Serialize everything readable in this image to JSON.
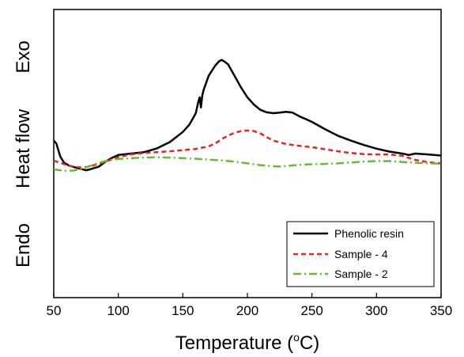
{
  "chart_data": {
    "type": "line",
    "xlabel": "Temperature",
    "xlabel_unit_prefix": "(",
    "xlabel_unit_super": "o",
    "xlabel_unit_suffix": "C)",
    "ylabel_parts": [
      "Endo",
      "Heat flow",
      "Exo"
    ],
    "xlim": [
      50,
      350
    ],
    "xticks": [
      50,
      100,
      150,
      200,
      250,
      300,
      350
    ],
    "y_ticks_shown": false,
    "ylim": [
      0,
      1
    ],
    "grid": false,
    "legend_position": "bottom-right",
    "series": [
      {
        "name": "Phenolic resin",
        "color": "#000000",
        "dash": "solid",
        "x": [
          50,
          52,
          55,
          58,
          62,
          68,
          75,
          78,
          80,
          85,
          90,
          95,
          100,
          110,
          120,
          130,
          140,
          150,
          155,
          160,
          162,
          163,
          164,
          165,
          166,
          170,
          175,
          178,
          180,
          182,
          185,
          190,
          195,
          200,
          205,
          210,
          215,
          220,
          225,
          230,
          235,
          240,
          250,
          260,
          270,
          280,
          290,
          300,
          310,
          320,
          325,
          330,
          340,
          350
        ],
        "y": [
          0.545,
          0.535,
          0.49,
          0.468,
          0.458,
          0.45,
          0.442,
          0.445,
          0.448,
          0.455,
          0.472,
          0.485,
          0.495,
          0.5,
          0.505,
          0.518,
          0.54,
          0.575,
          0.6,
          0.64,
          0.68,
          0.695,
          0.66,
          0.7,
          0.72,
          0.77,
          0.805,
          0.82,
          0.825,
          0.82,
          0.81,
          0.77,
          0.73,
          0.695,
          0.67,
          0.652,
          0.643,
          0.64,
          0.642,
          0.645,
          0.642,
          0.63,
          0.61,
          0.585,
          0.562,
          0.545,
          0.53,
          0.517,
          0.507,
          0.5,
          0.495,
          0.5,
          0.497,
          0.493
        ]
      },
      {
        "name": "Sample - 4",
        "color": "#e32626",
        "dash": "dashed",
        "x": [
          50,
          55,
          60,
          65,
          70,
          75,
          80,
          85,
          90,
          95,
          100,
          110,
          120,
          130,
          140,
          150,
          160,
          170,
          175,
          180,
          185,
          190,
          195,
          200,
          205,
          210,
          215,
          220,
          230,
          240,
          250,
          260,
          270,
          280,
          290,
          300,
          310,
          320,
          330,
          340,
          350
        ],
        "y": [
          0.475,
          0.468,
          0.46,
          0.455,
          0.452,
          0.453,
          0.458,
          0.465,
          0.472,
          0.48,
          0.488,
          0.497,
          0.502,
          0.505,
          0.508,
          0.512,
          0.516,
          0.525,
          0.535,
          0.55,
          0.562,
          0.572,
          0.578,
          0.58,
          0.578,
          0.57,
          0.557,
          0.545,
          0.533,
          0.527,
          0.522,
          0.515,
          0.508,
          0.502,
          0.498,
          0.497,
          0.497,
          0.492,
          0.478,
          0.47,
          0.466
        ]
      },
      {
        "name": "Sample - 2",
        "color": "#66bb33",
        "dash": "dashdot",
        "x": [
          50,
          55,
          60,
          65,
          70,
          75,
          80,
          85,
          90,
          95,
          100,
          110,
          120,
          130,
          140,
          150,
          160,
          170,
          180,
          190,
          200,
          210,
          220,
          225,
          230,
          240,
          250,
          260,
          270,
          280,
          290,
          300,
          310,
          320,
          330,
          340,
          350
        ],
        "y": [
          0.445,
          0.442,
          0.44,
          0.441,
          0.445,
          0.452,
          0.46,
          0.468,
          0.474,
          0.478,
          0.481,
          0.484,
          0.486,
          0.487,
          0.486,
          0.484,
          0.482,
          0.479,
          0.476,
          0.472,
          0.466,
          0.46,
          0.456,
          0.455,
          0.457,
          0.461,
          0.463,
          0.464,
          0.466,
          0.469,
          0.472,
          0.474,
          0.474,
          0.471,
          0.468,
          0.466,
          0.465
        ]
      }
    ]
  }
}
